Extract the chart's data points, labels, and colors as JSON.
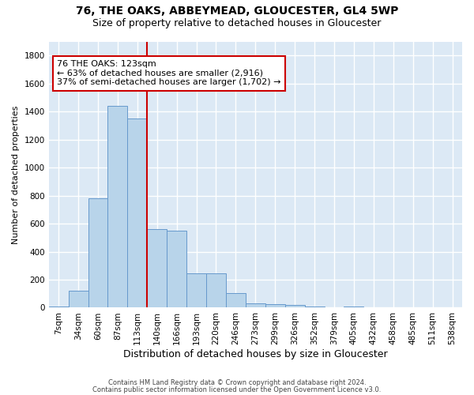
{
  "title": "76, THE OAKS, ABBEYMEAD, GLOUCESTER, GL4 5WP",
  "subtitle": "Size of property relative to detached houses in Gloucester",
  "xlabel": "Distribution of detached houses by size in Gloucester",
  "ylabel": "Number of detached properties",
  "bar_color": "#b8d4ea",
  "bar_edge_color": "#6699cc",
  "categories": [
    "7sqm",
    "34sqm",
    "60sqm",
    "87sqm",
    "113sqm",
    "140sqm",
    "166sqm",
    "193sqm",
    "220sqm",
    "246sqm",
    "273sqm",
    "299sqm",
    "326sqm",
    "352sqm",
    "379sqm",
    "405sqm",
    "432sqm",
    "458sqm",
    "485sqm",
    "511sqm",
    "538sqm"
  ],
  "values": [
    10,
    120,
    780,
    1440,
    1350,
    560,
    550,
    245,
    245,
    105,
    30,
    25,
    20,
    10,
    0,
    10,
    0,
    0,
    0,
    0,
    0
  ],
  "ylim": [
    0,
    1900
  ],
  "yticks": [
    0,
    200,
    400,
    600,
    800,
    1000,
    1200,
    1400,
    1600,
    1800
  ],
  "vline_x": 4.5,
  "vline_color": "#cc0000",
  "annotation_text": "76 THE OAKS: 123sqm\n← 63% of detached houses are smaller (2,916)\n37% of semi-detached houses are larger (1,702) →",
  "annotation_box_color": "#ffffff",
  "annotation_box_edge": "#cc0000",
  "footnote1": "Contains HM Land Registry data © Crown copyright and database right 2024.",
  "footnote2": "Contains public sector information licensed under the Open Government Licence v3.0.",
  "background_color": "#dce9f5",
  "grid_color": "#ffffff",
  "title_fontsize": 10,
  "subtitle_fontsize": 9,
  "ylabel_fontsize": 8,
  "xlabel_fontsize": 9,
  "tick_fontsize": 7.5,
  "annot_fontsize": 8
}
